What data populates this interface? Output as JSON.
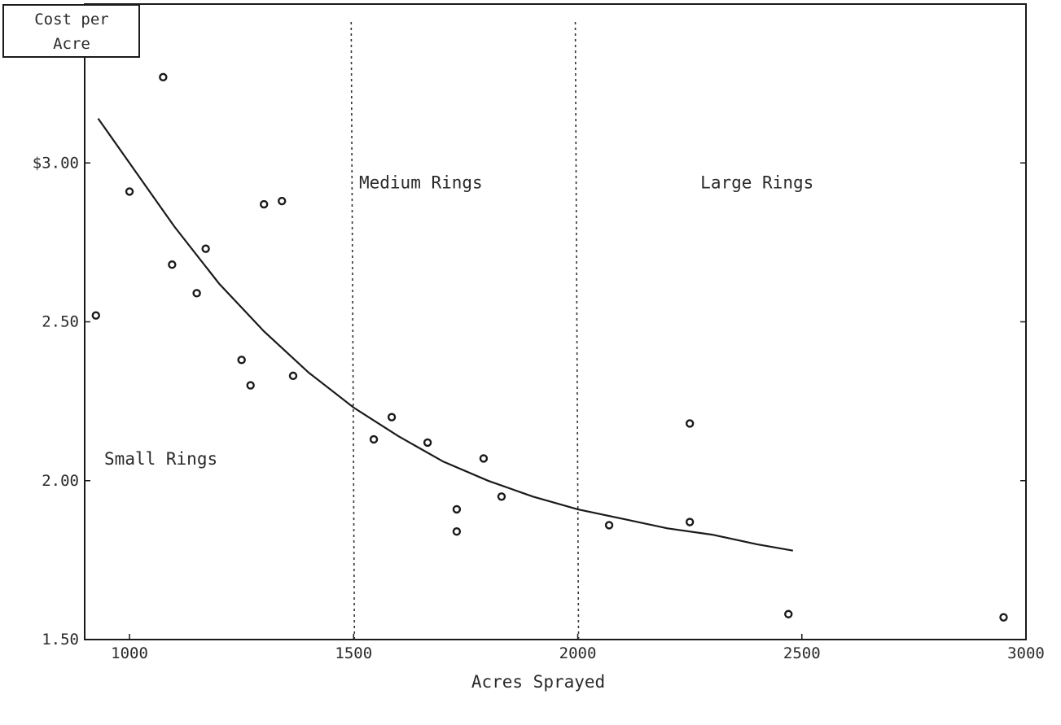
{
  "chart_data": {
    "type": "scatter",
    "title": "",
    "xlabel": "Acres Sprayed",
    "ylabel": "Cost per Acre",
    "ylabel_lines": [
      "Cost per",
      "Acre"
    ],
    "xlim": [
      900,
      3000
    ],
    "ylim": [
      1.5,
      3.5
    ],
    "x_ticks": [
      1000,
      1500,
      2000,
      2500,
      3000
    ],
    "x_tick_labels": [
      "1000",
      "1500",
      "2000",
      "2500",
      "3000"
    ],
    "y_ticks": [
      1.5,
      2.0,
      2.5,
      3.0
    ],
    "y_tick_labels": [
      "1.50",
      "2.00",
      "2.50",
      "$3.00"
    ],
    "grid": false,
    "legend": "none",
    "region_boundaries": [
      1500,
      2000
    ],
    "region_labels": [
      {
        "text": "Small Rings",
        "x": 1070,
        "y": 2.05
      },
      {
        "text": "Medium Rings",
        "x": 1650,
        "y": 2.92
      },
      {
        "text": "Large Rings",
        "x": 2400,
        "y": 2.92
      }
    ],
    "points": [
      {
        "x": 925,
        "y": 2.52
      },
      {
        "x": 1000,
        "y": 2.91
      },
      {
        "x": 1075,
        "y": 3.27
      },
      {
        "x": 1095,
        "y": 2.68
      },
      {
        "x": 1150,
        "y": 2.59
      },
      {
        "x": 1170,
        "y": 2.73
      },
      {
        "x": 1250,
        "y": 2.38
      },
      {
        "x": 1270,
        "y": 2.3
      },
      {
        "x": 1300,
        "y": 2.87
      },
      {
        "x": 1340,
        "y": 2.88
      },
      {
        "x": 1365,
        "y": 2.33
      },
      {
        "x": 1545,
        "y": 2.13
      },
      {
        "x": 1585,
        "y": 2.2
      },
      {
        "x": 1665,
        "y": 2.12
      },
      {
        "x": 1730,
        "y": 1.91
      },
      {
        "x": 1730,
        "y": 1.84
      },
      {
        "x": 1790,
        "y": 2.07
      },
      {
        "x": 1830,
        "y": 1.95
      },
      {
        "x": 2070,
        "y": 1.86
      },
      {
        "x": 2250,
        "y": 2.18
      },
      {
        "x": 2250,
        "y": 1.87
      },
      {
        "x": 2470,
        "y": 1.58
      },
      {
        "x": 2950,
        "y": 1.57
      }
    ],
    "trend_line": {
      "x": [
        930,
        1000,
        1100,
        1200,
        1300,
        1400,
        1500,
        1600,
        1700,
        1800,
        1900,
        2000,
        2100,
        2200,
        2300,
        2400,
        2480
      ],
      "y": [
        3.14,
        3.0,
        2.8,
        2.62,
        2.47,
        2.34,
        2.23,
        2.14,
        2.06,
        2.0,
        1.95,
        1.91,
        1.88,
        1.85,
        1.83,
        1.8,
        1.78
      ]
    }
  }
}
